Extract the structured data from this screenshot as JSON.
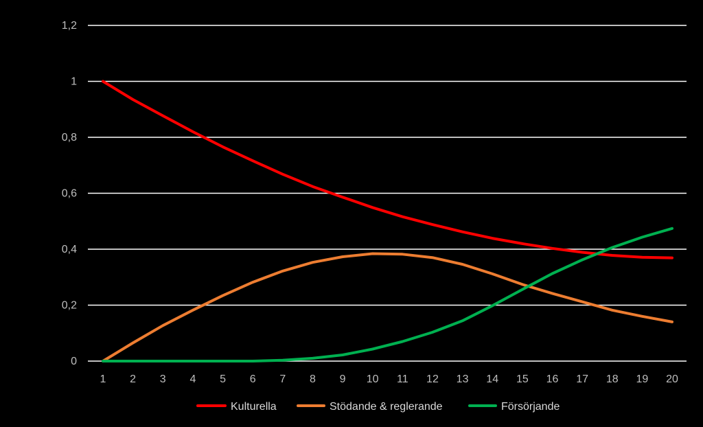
{
  "chart_data": {
    "type": "line",
    "background": "#000000",
    "grid": true,
    "grid_color": "#FFFFFF",
    "tick_color": "#BFBFBF",
    "legend_placement": "bottom-center",
    "x": [
      1,
      2,
      3,
      4,
      5,
      6,
      7,
      8,
      9,
      10,
      11,
      12,
      13,
      14,
      15,
      16,
      17,
      18,
      19,
      20
    ],
    "ylim": [
      0,
      1.2
    ],
    "yticks": [
      "0",
      "0,2",
      "0,4",
      "0,6",
      "0,8",
      "1",
      "1,2"
    ],
    "ytick_values": [
      0,
      0.2,
      0.4,
      0.6,
      0.8,
      1.0,
      1.2
    ],
    "series": [
      {
        "name": "Kulturella",
        "color": "#FF0000",
        "values": [
          1.0,
          0.935,
          0.877,
          0.82,
          0.766,
          0.716,
          0.668,
          0.624,
          0.586,
          0.549,
          0.516,
          0.488,
          0.462,
          0.439,
          0.42,
          0.403,
          0.389,
          0.378,
          0.371,
          0.369
        ]
      },
      {
        "name": "Stödande & reglerande",
        "color": "#ED7D31",
        "values": [
          0.0,
          0.065,
          0.127,
          0.182,
          0.234,
          0.282,
          0.322,
          0.353,
          0.373,
          0.384,
          0.382,
          0.37,
          0.346,
          0.312,
          0.274,
          0.242,
          0.212,
          0.182,
          0.16,
          0.14
        ]
      },
      {
        "name": "Försörjande",
        "color": "#00B050",
        "values": [
          0.0,
          0.0,
          0.0,
          0.0,
          0.0,
          0.0,
          0.003,
          0.01,
          0.022,
          0.043,
          0.07,
          0.103,
          0.144,
          0.198,
          0.256,
          0.313,
          0.362,
          0.406,
          0.443,
          0.474
        ]
      }
    ]
  }
}
